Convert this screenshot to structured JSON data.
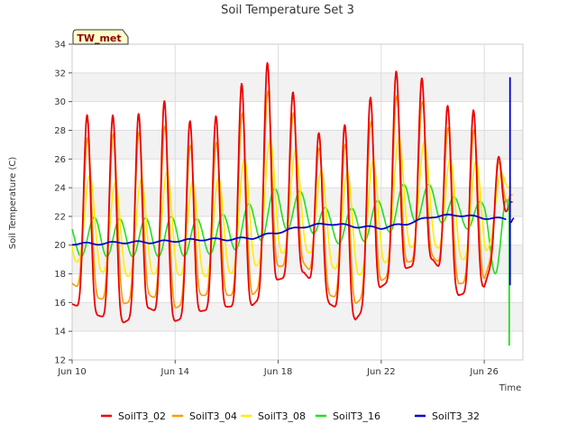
{
  "chart_data": {
    "type": "line",
    "title": "Soil Temperature Set 3",
    "xlabel": "Time",
    "ylabel": "Soil Temperature (C)",
    "badge": "TW_met",
    "xlim": [
      0,
      17.5
    ],
    "ylim": [
      12,
      34
    ],
    "x_units": "days since Jun 10",
    "x_ticks": [
      {
        "day": 0,
        "label": "Jun 10"
      },
      {
        "day": 4,
        "label": "Jun 14"
      },
      {
        "day": 8,
        "label": "Jun 18"
      },
      {
        "day": 12,
        "label": "Jun 22"
      },
      {
        "day": 16,
        "label": "Jun 26"
      }
    ],
    "y_ticks": [
      12,
      14,
      16,
      18,
      20,
      22,
      24,
      26,
      28,
      30,
      32,
      34
    ],
    "grid": true,
    "legend_position": "bottom",
    "daily_extremes": {
      "days": [
        10,
        11,
        12,
        13,
        14,
        15,
        16,
        17,
        18,
        19,
        20,
        21,
        22,
        23,
        24,
        25,
        26,
        27
      ],
      "SoilT3_02_max": [
        28.6,
        29.4,
        28.8,
        29.4,
        30.5,
        27.3,
        30.2,
        32.0,
        33.2,
        28.8,
        27.1,
        29.3,
        31.0,
        32.9,
        30.7,
        29.0,
        29.7,
        23.5
      ],
      "SoilT3_02_min": [
        15.9,
        15.1,
        14.6,
        15.6,
        14.7,
        15.4,
        15.7,
        15.8,
        17.6,
        18.1,
        15.9,
        14.8,
        17.1,
        18.4,
        19.0,
        16.5,
        17.1,
        23.0
      ],
      "SoilT3_04_max": [
        27.0,
        27.8,
        27.7,
        28.0,
        28.5,
        25.9,
        28.0,
        30.0,
        31.2,
        27.9,
        26.0,
        27.7,
        29.2,
        31.2,
        29.2,
        27.5,
        28.4,
        24.0
      ],
      "SoilT3_04_min": [
        17.3,
        16.3,
        15.9,
        16.5,
        15.6,
        16.5,
        16.5,
        16.5,
        18.5,
        18.7,
        16.5,
        15.9,
        17.5,
        18.8,
        19.2,
        17.3,
        17.6,
        23.5
      ],
      "SoilT3_08_max": [
        24.5,
        25.0,
        24.0,
        24.8,
        25.2,
        24.0,
        25.0,
        26.5,
        27.8,
        26.0,
        24.8,
        25.2,
        26.2,
        28.0,
        26.8,
        25.6,
        26.0,
        24.5
      ],
      "SoilT3_08_min": [
        19.0,
        18.2,
        17.8,
        18.0,
        17.9,
        17.8,
        18.0,
        18.4,
        19.4,
        19.7,
        18.5,
        17.8,
        18.6,
        19.8,
        20.0,
        19.0,
        19.0,
        24.0
      ],
      "SoilT3_16_max": [
        21.6,
        22.0,
        21.8,
        21.9,
        22.0,
        21.8,
        22.2,
        23.0,
        24.1,
        23.7,
        22.4,
        22.6,
        23.2,
        24.4,
        24.2,
        23.2,
        23.0,
        23.2
      ],
      "SoilT3_16_min": [
        19.2,
        19.2,
        19.2,
        19.2,
        19.2,
        19.3,
        19.5,
        20.0,
        21.0,
        21.2,
        20.1,
        20.1,
        20.6,
        21.5,
        21.8,
        21.1,
        21.2,
        13.0
      ],
      "SoilT3_32_level": [
        20.1,
        20.1,
        20.2,
        20.2,
        20.3,
        20.4,
        20.4,
        20.5,
        20.9,
        21.3,
        21.5,
        21.3,
        21.2,
        21.5,
        22.0,
        22.1,
        21.9,
        21.8
      ]
    },
    "series": [
      {
        "name": "SoilT3_02",
        "color": "#ee0000"
      },
      {
        "name": "SoilT3_04",
        "color": "#ff9900"
      },
      {
        "name": "SoilT3_08",
        "color": "#ffee00"
      },
      {
        "name": "SoilT3_16",
        "color": "#22dd22"
      },
      {
        "name": "SoilT3_32",
        "color": "#0000cc"
      }
    ]
  }
}
